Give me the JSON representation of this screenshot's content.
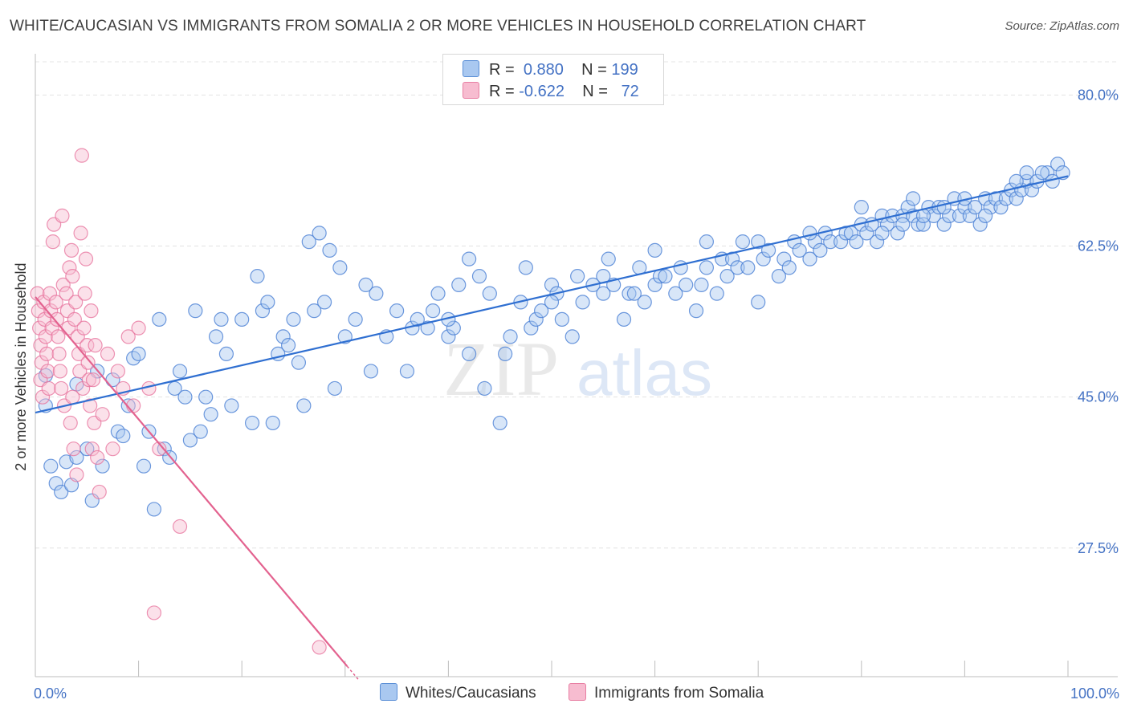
{
  "header": {
    "title": "WHITE/CAUCASIAN VS IMMIGRANTS FROM SOMALIA 2 OR MORE VEHICLES IN HOUSEHOLD CORRELATION CHART",
    "source": "Source: ZipAtlas.com"
  },
  "legend": {
    "rows": [
      {
        "r_label": "R =",
        "r_value": "0.880",
        "n_label": "N =",
        "n_value": "199",
        "color": "#9dc3f0",
        "border": "#5b8fd6"
      },
      {
        "r_label": "R =",
        "r_value": "-0.622",
        "n_label": "N =",
        "n_value": "72",
        "color": "#f7b6cb",
        "border": "#e87fa3"
      }
    ]
  },
  "bottom_legend": {
    "items": [
      {
        "label": "Whites/Caucasians",
        "color": "#9dc3f0",
        "border": "#5b8fd6"
      },
      {
        "label": "Immigrants from Somalia",
        "color": "#f7b6cb",
        "border": "#e87fa3"
      }
    ]
  },
  "watermark": {
    "zip": "ZIP",
    "atlas": "atlas"
  },
  "chart_data": {
    "type": "scatter",
    "title": "WHITE/CAUCASIAN VS IMMIGRANTS FROM SOMALIA 2 OR MORE VEHICLES IN HOUSEHOLD CORRELATION CHART",
    "ylabel": "2 or more Vehicles in Household",
    "xlabel": "",
    "xlim": [
      0,
      100
    ],
    "ylim": [
      12.6,
      84.5
    ],
    "x_tick_labels": [
      "0.0%",
      "100.0%"
    ],
    "y_ticks": [
      27.5,
      45.0,
      62.5,
      80.0
    ],
    "y_tick_labels": [
      "27.5%",
      "45.0%",
      "62.5%",
      "80.0%"
    ],
    "grid": true,
    "legend_position": "top-center",
    "colors": {
      "whites": "#4a7fd4",
      "whites_fill": "#a9c8f0",
      "somalia": "#e7709b",
      "somalia_fill": "#f6bcd0"
    },
    "series": [
      {
        "name": "Whites/Caucasians",
        "r": 0.88,
        "n": 199,
        "trend": {
          "x": [
            0,
            100
          ],
          "y": [
            43.2,
            70.6
          ]
        },
        "points": [
          [
            1,
            47.5
          ],
          [
            1,
            44
          ],
          [
            1.5,
            37
          ],
          [
            2,
            35
          ],
          [
            2.5,
            34
          ],
          [
            3,
            37.5
          ],
          [
            3.5,
            34.8
          ],
          [
            4,
            46.5
          ],
          [
            4,
            38
          ],
          [
            5,
            39
          ],
          [
            5.5,
            33
          ],
          [
            6,
            48
          ],
          [
            6.5,
            37
          ],
          [
            7.5,
            47
          ],
          [
            8,
            41
          ],
          [
            8.5,
            40.5
          ],
          [
            9,
            44
          ],
          [
            9.5,
            49.5
          ],
          [
            10,
            50
          ],
          [
            10.5,
            37
          ],
          [
            11,
            41
          ],
          [
            11.5,
            32
          ],
          [
            12,
            54
          ],
          [
            12.5,
            39
          ],
          [
            13,
            38
          ],
          [
            13.5,
            46
          ],
          [
            14,
            48
          ],
          [
            14.5,
            45
          ],
          [
            15,
            40
          ],
          [
            15.5,
            55
          ],
          [
            16,
            41
          ],
          [
            16.5,
            45
          ],
          [
            17,
            43
          ],
          [
            17.5,
            52
          ],
          [
            18,
            54
          ],
          [
            18.5,
            50
          ],
          [
            19,
            44
          ],
          [
            20,
            54
          ],
          [
            21,
            42
          ],
          [
            21.5,
            59
          ],
          [
            22,
            55
          ],
          [
            22.5,
            56
          ],
          [
            23,
            42
          ],
          [
            23.5,
            50
          ],
          [
            24,
            52
          ],
          [
            24.5,
            51
          ],
          [
            25,
            54
          ],
          [
            25.5,
            49
          ],
          [
            26,
            44
          ],
          [
            26.5,
            63
          ],
          [
            27,
            55
          ],
          [
            27.5,
            64
          ],
          [
            28,
            56
          ],
          [
            28.5,
            62
          ],
          [
            29,
            46
          ],
          [
            29.5,
            60
          ],
          [
            30,
            52
          ],
          [
            31,
            54
          ],
          [
            32,
            58
          ],
          [
            32.5,
            48
          ],
          [
            33,
            57
          ],
          [
            34,
            52
          ],
          [
            35,
            55
          ],
          [
            36,
            48
          ],
          [
            36.5,
            53
          ],
          [
            37,
            54
          ],
          [
            38,
            53
          ],
          [
            38.5,
            55
          ],
          [
            39,
            57
          ],
          [
            40,
            52
          ],
          [
            40.5,
            53
          ],
          [
            41,
            58
          ],
          [
            42,
            50
          ],
          [
            43,
            59
          ],
          [
            43.5,
            46
          ],
          [
            44,
            57
          ],
          [
            45,
            42
          ],
          [
            45.5,
            50
          ],
          [
            46,
            52
          ],
          [
            47,
            56
          ],
          [
            47.5,
            60
          ],
          [
            48,
            53
          ],
          [
            48.5,
            54
          ],
          [
            49,
            55
          ],
          [
            50,
            58
          ],
          [
            50.5,
            57
          ],
          [
            51,
            54
          ],
          [
            52,
            52
          ],
          [
            52.5,
            59
          ],
          [
            53,
            56
          ],
          [
            54,
            58
          ],
          [
            55,
            59
          ],
          [
            55.5,
            61
          ],
          [
            56,
            58
          ],
          [
            57,
            54
          ],
          [
            57.5,
            57
          ],
          [
            58,
            57
          ],
          [
            58.5,
            60
          ],
          [
            59,
            56
          ],
          [
            60,
            58
          ],
          [
            60.5,
            59
          ],
          [
            61,
            59
          ],
          [
            62,
            57
          ],
          [
            62.5,
            60
          ],
          [
            63,
            58
          ],
          [
            64,
            55
          ],
          [
            64.5,
            58
          ],
          [
            65,
            60
          ],
          [
            66,
            57
          ],
          [
            66.5,
            61
          ],
          [
            67,
            59
          ],
          [
            67.5,
            61
          ],
          [
            68,
            60
          ],
          [
            68.5,
            63
          ],
          [
            69,
            60
          ],
          [
            70,
            56
          ],
          [
            70.5,
            61
          ],
          [
            71,
            62
          ],
          [
            72,
            59
          ],
          [
            72.5,
            61
          ],
          [
            73,
            60
          ],
          [
            73.5,
            63
          ],
          [
            74,
            62
          ],
          [
            75,
            61
          ],
          [
            75.5,
            63
          ],
          [
            76,
            62
          ],
          [
            76.5,
            64
          ],
          [
            77,
            63
          ],
          [
            78,
            63
          ],
          [
            78.5,
            64
          ],
          [
            79,
            64
          ],
          [
            79.5,
            63
          ],
          [
            80,
            65
          ],
          [
            80.5,
            64
          ],
          [
            81,
            65
          ],
          [
            81.5,
            63
          ],
          [
            82,
            66
          ],
          [
            82.5,
            65
          ],
          [
            83,
            66
          ],
          [
            83.5,
            64
          ],
          [
            84,
            66
          ],
          [
            84.5,
            67
          ],
          [
            85,
            66
          ],
          [
            85.5,
            65
          ],
          [
            86,
            65
          ],
          [
            86.5,
            67
          ],
          [
            87,
            66
          ],
          [
            87.5,
            67
          ],
          [
            88,
            65
          ],
          [
            88.5,
            66
          ],
          [
            89,
            68
          ],
          [
            89.5,
            66
          ],
          [
            90,
            67
          ],
          [
            90.5,
            66
          ],
          [
            91,
            67
          ],
          [
            91.5,
            65
          ],
          [
            92,
            68
          ],
          [
            92.5,
            67
          ],
          [
            93,
            68
          ],
          [
            93.5,
            67
          ],
          [
            94,
            68
          ],
          [
            94.5,
            69
          ],
          [
            95,
            68
          ],
          [
            95.5,
            69
          ],
          [
            96,
            70
          ],
          [
            96.5,
            69
          ],
          [
            97,
            70
          ],
          [
            98,
            71
          ],
          [
            98.5,
            70
          ],
          [
            99,
            72
          ],
          [
            99.5,
            71
          ],
          [
            40,
            54
          ],
          [
            42,
            61
          ],
          [
            50,
            56
          ],
          [
            55,
            57
          ],
          [
            60,
            62
          ],
          [
            65,
            63
          ],
          [
            70,
            63
          ],
          [
            75,
            64
          ],
          [
            80,
            67
          ],
          [
            85,
            68
          ],
          [
            90,
            68
          ],
          [
            95,
            70
          ],
          [
            96,
            71
          ],
          [
            97.5,
            71
          ],
          [
            82,
            64
          ],
          [
            84,
            65
          ],
          [
            86,
            66
          ],
          [
            88,
            67
          ],
          [
            92,
            66
          ]
        ]
      },
      {
        "name": "Immigrants from Somalia",
        "r": -0.622,
        "n": 72,
        "trend": {
          "x": [
            0,
            30.2
          ],
          "y": 56.6,
          "y_end": 13.8
        },
        "points": [
          [
            0.2,
            57
          ],
          [
            0.3,
            55
          ],
          [
            0.4,
            53
          ],
          [
            0.5,
            51
          ],
          [
            0.6,
            49
          ],
          [
            0.5,
            47
          ],
          [
            0.7,
            45
          ],
          [
            0.8,
            56
          ],
          [
            0.9,
            54
          ],
          [
            1,
            52
          ],
          [
            1.1,
            50
          ],
          [
            1.2,
            48
          ],
          [
            1.3,
            46
          ],
          [
            1.4,
            57
          ],
          [
            1.5,
            55
          ],
          [
            1.6,
            53
          ],
          [
            1.7,
            63
          ],
          [
            1.8,
            65
          ],
          [
            2,
            56
          ],
          [
            2.1,
            54
          ],
          [
            2.2,
            52
          ],
          [
            2.3,
            50
          ],
          [
            2.4,
            48
          ],
          [
            2.5,
            46
          ],
          [
            2.6,
            66
          ],
          [
            2.7,
            58
          ],
          [
            2.8,
            44
          ],
          [
            3,
            57
          ],
          [
            3.1,
            55
          ],
          [
            3.2,
            53
          ],
          [
            3.3,
            60
          ],
          [
            3.4,
            42
          ],
          [
            3.5,
            62
          ],
          [
            3.6,
            59
          ],
          [
            3.7,
            39
          ],
          [
            3.8,
            54
          ],
          [
            3.9,
            56
          ],
          [
            4,
            36
          ],
          [
            4.1,
            52
          ],
          [
            4.2,
            50
          ],
          [
            4.3,
            48
          ],
          [
            4.4,
            64
          ],
          [
            4.5,
            73
          ],
          [
            4.6,
            46
          ],
          [
            4.7,
            53
          ],
          [
            4.8,
            57
          ],
          [
            5,
            51
          ],
          [
            5.1,
            49
          ],
          [
            5.2,
            47
          ],
          [
            5.3,
            44
          ],
          [
            5.4,
            55
          ],
          [
            5.5,
            39
          ],
          [
            5.6,
            47
          ],
          [
            5.7,
            42
          ],
          [
            5.8,
            51
          ],
          [
            6,
            38
          ],
          [
            6.2,
            34
          ],
          [
            6.5,
            43
          ],
          [
            7,
            50
          ],
          [
            7.5,
            39
          ],
          [
            8,
            48
          ],
          [
            8.5,
            46
          ],
          [
            9,
            52
          ],
          [
            9.5,
            44
          ],
          [
            10,
            53
          ],
          [
            11,
            46
          ],
          [
            11.5,
            20
          ],
          [
            12,
            39
          ],
          [
            14,
            30
          ],
          [
            27.5,
            16
          ],
          [
            4.9,
            61
          ],
          [
            3.6,
            45
          ]
        ]
      }
    ]
  }
}
